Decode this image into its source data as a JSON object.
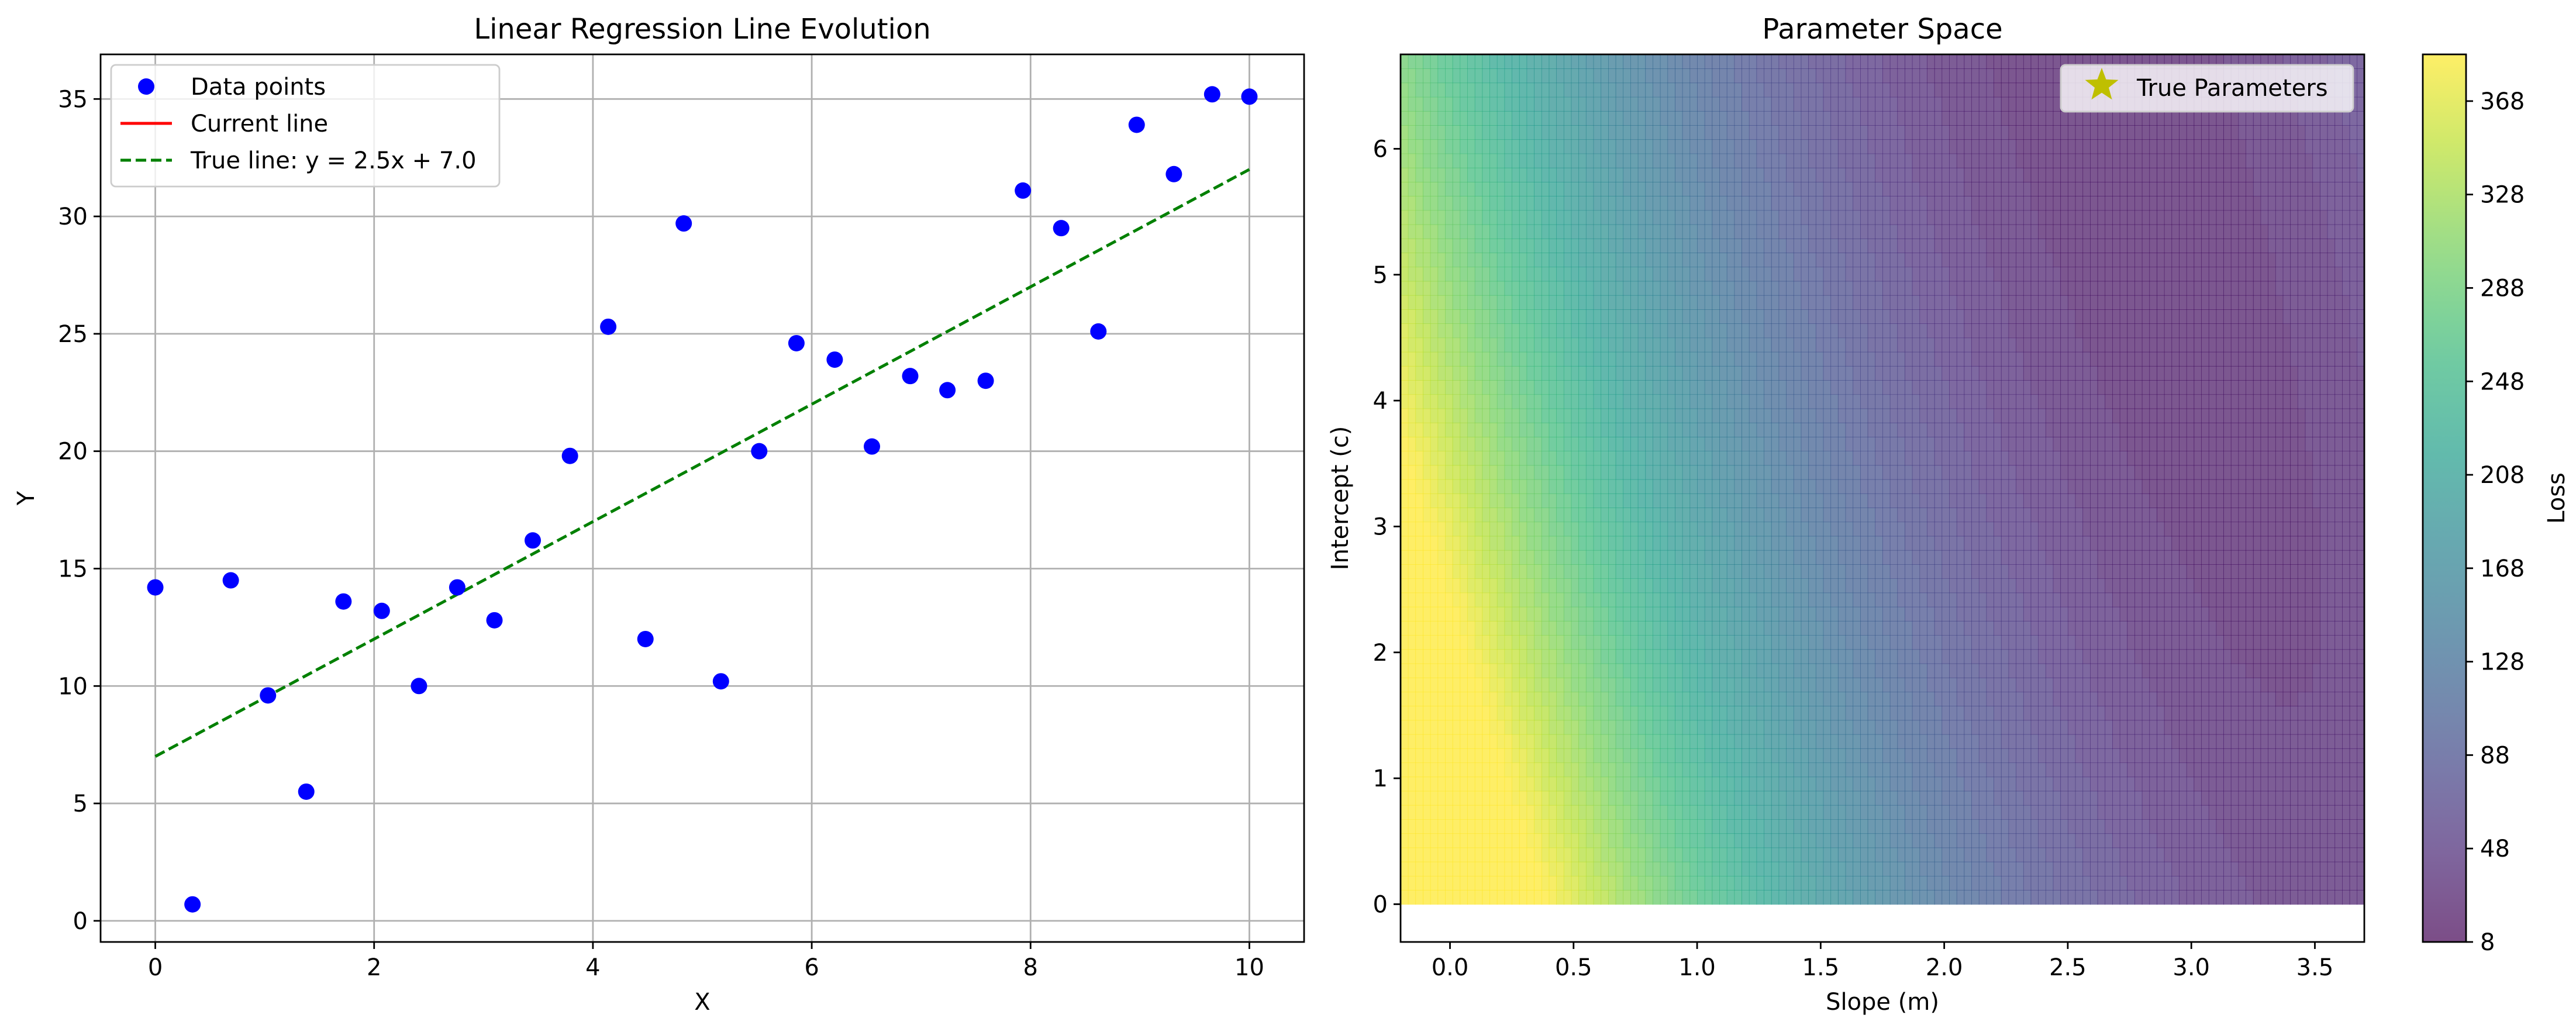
{
  "chart_data": [
    {
      "type": "scatter",
      "title": "Linear Regression Line Evolution",
      "xlabel": "X",
      "ylabel": "Y",
      "xlim": [
        -0.5,
        10.5
      ],
      "ylim": [
        -0.9,
        36.9
      ],
      "xticks": [
        "0",
        "2",
        "4",
        "6",
        "8",
        "10"
      ],
      "yticks": [
        "0",
        "5",
        "10",
        "15",
        "20",
        "25",
        "30",
        "35"
      ],
      "grid": true,
      "legend_position": "upper-left",
      "legend": [
        "Data points",
        "Current line",
        "True line: y = 2.5x + 7.0"
      ],
      "series": [
        {
          "name": "Data points",
          "kind": "scatter",
          "color": "#0000ff",
          "x": [
            0.0,
            0.34,
            0.69,
            1.03,
            1.38,
            1.72,
            2.07,
            2.41,
            2.76,
            3.1,
            3.45,
            3.79,
            4.14,
            4.48,
            4.83,
            5.17,
            5.52,
            5.86,
            6.21,
            6.55,
            6.9,
            7.24,
            7.59,
            7.93,
            8.28,
            8.62,
            8.97,
            9.31,
            9.66,
            10.0
          ],
          "y": [
            14.2,
            0.7,
            14.5,
            9.6,
            5.5,
            13.6,
            13.2,
            10.0,
            14.2,
            12.8,
            16.2,
            19.8,
            25.3,
            12.0,
            29.7,
            10.2,
            20.0,
            24.6,
            23.9,
            20.2,
            23.2,
            22.6,
            23.0,
            31.1,
            29.5,
            25.1,
            33.9,
            31.8,
            35.2,
            35.1
          ]
        },
        {
          "name": "Current line",
          "kind": "line",
          "color": "#ff0000",
          "x": [],
          "y": []
        },
        {
          "name": "True line: y = 2.5x + 7.0",
          "kind": "dashed-line",
          "color": "#008000",
          "x": [
            0,
            10
          ],
          "y": [
            7.0,
            32.0
          ]
        }
      ]
    },
    {
      "type": "heatmap",
      "title": "Parameter Space",
      "xlabel": "Slope (m)",
      "ylabel": "Intercept (c)",
      "xlim": [
        -0.2,
        3.7
      ],
      "ylim": [
        -0.3,
        6.75
      ],
      "xticks": [
        "0.0",
        "0.5",
        "1.0",
        "1.5",
        "2.0",
        "2.5",
        "3.0",
        "3.5"
      ],
      "yticks": [
        "0",
        "1",
        "2",
        "3",
        "4",
        "5",
        "6"
      ],
      "colormap": "viridis",
      "colorbar": {
        "label": "Loss",
        "min": 8,
        "max": 388,
        "ticks": [
          "8",
          "48",
          "88",
          "128",
          "168",
          "208",
          "248",
          "288",
          "328",
          "368"
        ]
      },
      "contour_levels": 38,
      "legend_position": "upper-right",
      "legend": [
        "True Parameters"
      ],
      "marker": {
        "name": "True Parameters",
        "symbol": "star",
        "color": "#bfbf00"
      }
    }
  ]
}
